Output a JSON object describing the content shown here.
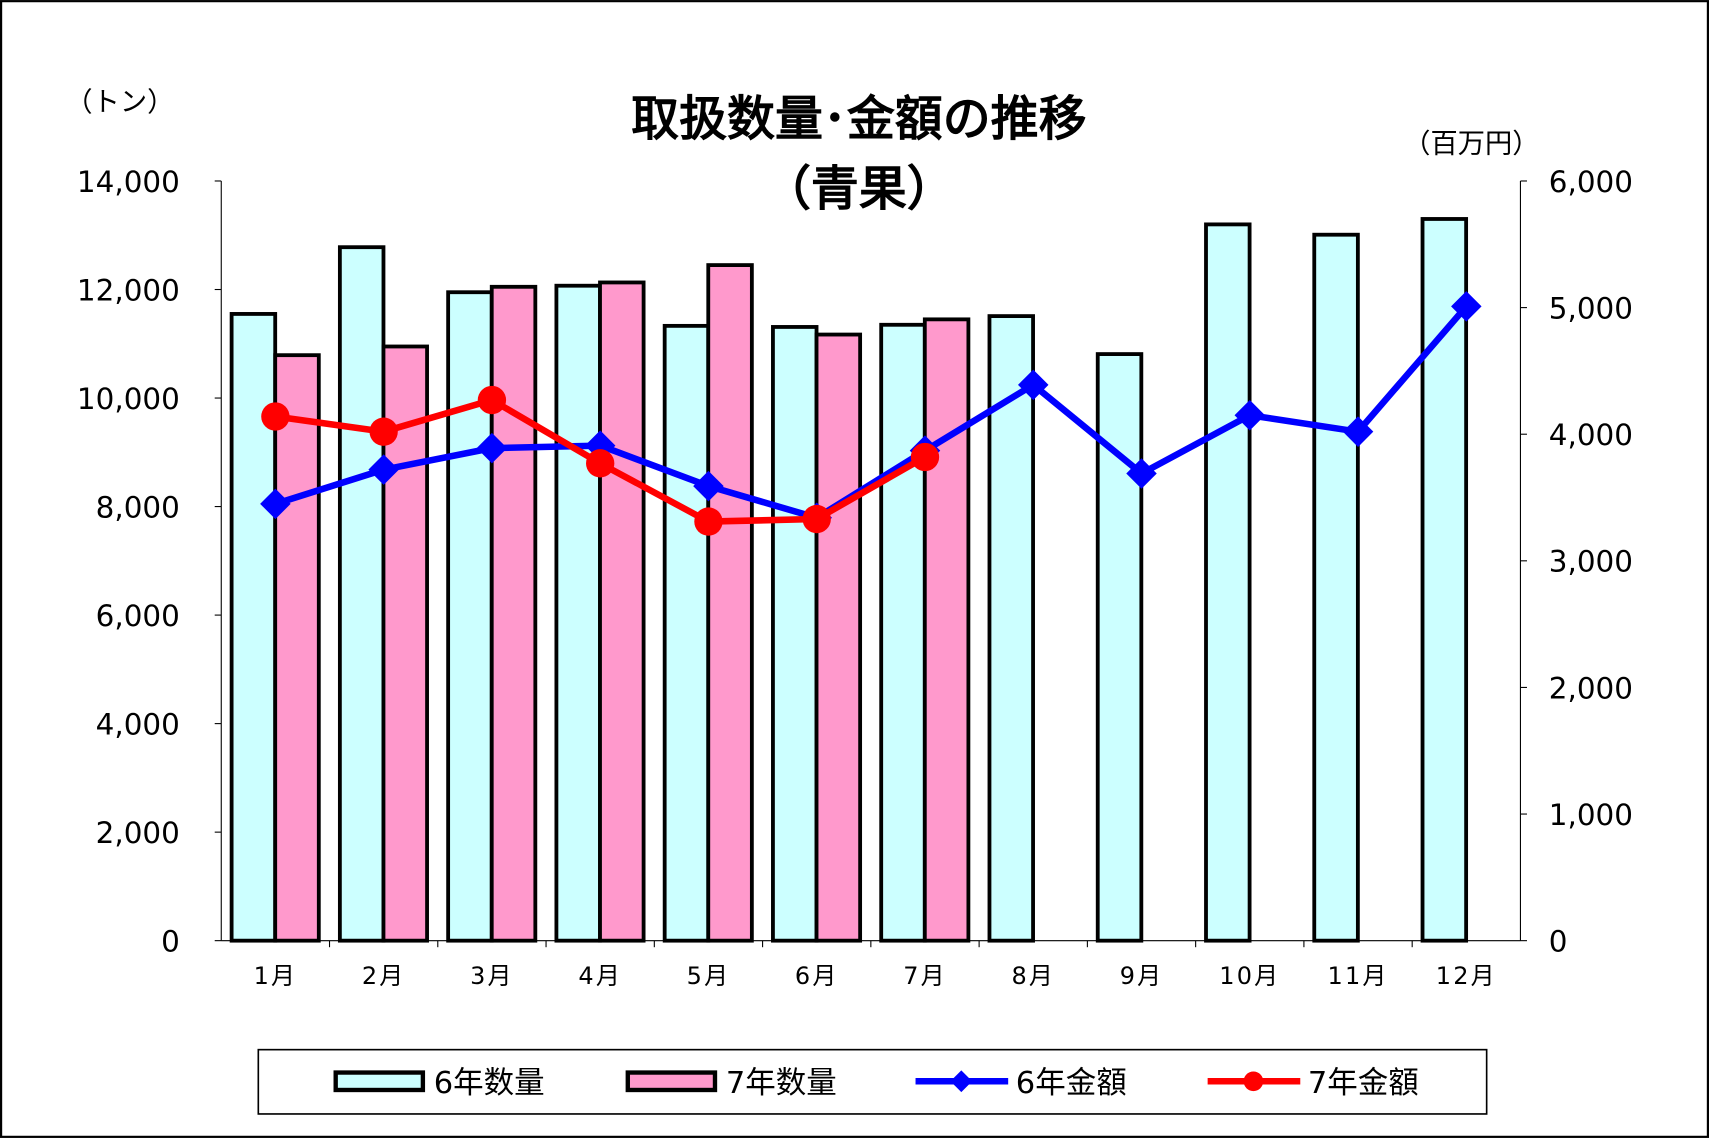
{
  "chart_data": {
    "type": "bar+line",
    "title": "取扱数量･金額の推移",
    "subtitle": "（青果）",
    "ylabel_left": "（トン）",
    "ylabel_right": "（百万円）",
    "ylim_left": [
      0,
      14000
    ],
    "ylim_right": [
      0,
      6000
    ],
    "yticks_left": [
      "0",
      "2,000",
      "4,000",
      "6,000",
      "8,000",
      "10,000",
      "12,000",
      "14,000"
    ],
    "yticks_right": [
      "0",
      "1,000",
      "2,000",
      "3,000",
      "4,000",
      "5,000",
      "6,000"
    ],
    "categories": [
      "1月",
      "2月",
      "3月",
      "4月",
      "5月",
      "6月",
      "7月",
      "8月",
      "9月",
      "10月",
      "11月",
      "12月"
    ],
    "series": [
      {
        "name": "6年数量",
        "type": "bar",
        "axis": "left",
        "color": "#CCFFFF",
        "values": [
          11550,
          12780,
          11950,
          12070,
          11330,
          11310,
          11350,
          11510,
          10810,
          13200,
          13010,
          13300
        ]
      },
      {
        "name": "7年数量",
        "type": "bar",
        "axis": "left",
        "color": "#FF99CC",
        "values": [
          10790,
          10950,
          12050,
          12130,
          12450,
          11170,
          11450,
          null,
          null,
          null,
          null,
          null
        ]
      },
      {
        "name": "6年金額",
        "type": "line",
        "axis": "right",
        "color": "#0000FF",
        "marker": "diamond",
        "values": [
          3450,
          3720,
          3890,
          3910,
          3590,
          3340,
          3870,
          4390,
          3690,
          4150,
          4020,
          5010
        ]
      },
      {
        "name": "7年金額",
        "type": "line",
        "axis": "right",
        "color": "#FF0000",
        "marker": "circle",
        "values": [
          4140,
          4020,
          4270,
          3770,
          3310,
          3330,
          3820,
          null,
          null,
          null,
          null,
          null
        ]
      }
    ],
    "legend": "bottom",
    "grid": false
  }
}
